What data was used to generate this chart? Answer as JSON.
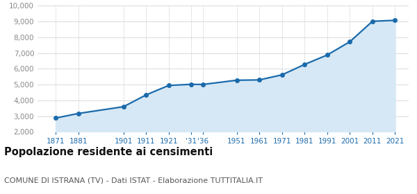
{
  "years": [
    1871,
    1881,
    1901,
    1911,
    1921,
    1931,
    1936,
    1951,
    1961,
    1971,
    1981,
    1991,
    2001,
    2011,
    2021
  ],
  "population": [
    2880,
    3170,
    3600,
    4350,
    4950,
    5020,
    5010,
    5280,
    5300,
    5620,
    6280,
    6880,
    7720,
    9020,
    9080
  ],
  "line_color": "#1a6aab",
  "fill_color": "#d6e8f5",
  "marker_color": "#1a6aab",
  "background_color": "#ffffff",
  "grid_color_y": "#cccccc",
  "grid_color_x": "#cccccc",
  "ylim": [
    2000,
    10000
  ],
  "yticks": [
    2000,
    3000,
    4000,
    5000,
    6000,
    7000,
    8000,
    9000,
    10000
  ],
  "title": "Popolazione residente ai censimenti",
  "subtitle": "COMUNE DI ISTRANA (TV) - Dati ISTAT - Elaborazione TUTTITALIA.IT",
  "title_fontsize": 10.5,
  "subtitle_fontsize": 8,
  "ytick_color": "#888888",
  "xtick_color": "#1a6aab",
  "xlim_left": 1863,
  "xlim_right": 2027
}
